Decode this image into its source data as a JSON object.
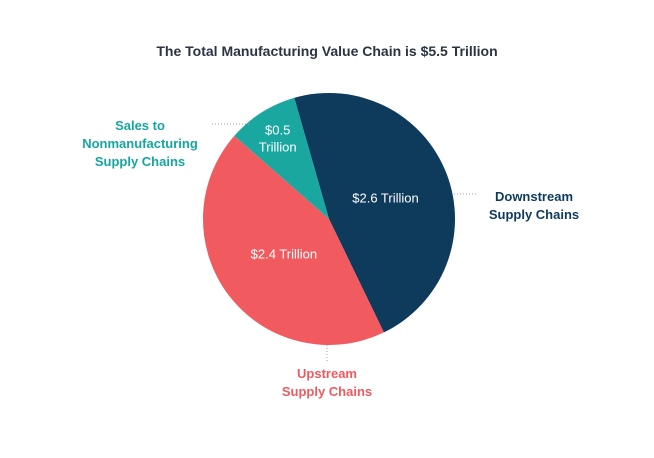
{
  "chart_data": {
    "type": "pie",
    "title": "The Total Manufacturing Value Chain is $5.5 Trillion",
    "unit": "Trillion",
    "slices": [
      {
        "name": "Downstream Supply Chains",
        "name_lines": [
          "Downstream",
          "Supply Chains"
        ],
        "value": 2.6,
        "value_label_lines": [
          "$2.6 Trillion"
        ],
        "color": "#0e3a5c",
        "label_color": "#0e3a5c"
      },
      {
        "name": "Upstream Supply Chains",
        "name_lines": [
          "Upstream",
          "Supply Chains"
        ],
        "value": 2.4,
        "value_label_lines": [
          "$2.4 Trillion"
        ],
        "color": "#f15b60",
        "label_color": "#ee5a5f"
      },
      {
        "name": "Sales to Nonmanufacturing Supply Chains",
        "name_lines": [
          "Sales to",
          "Nonmanufacturing",
          "Supply Chains"
        ],
        "value": 0.5,
        "value_label_lines": [
          "$0.5",
          "Trillion"
        ],
        "color": "#1aa7a0",
        "label_color": "#16a6a0"
      }
    ]
  }
}
